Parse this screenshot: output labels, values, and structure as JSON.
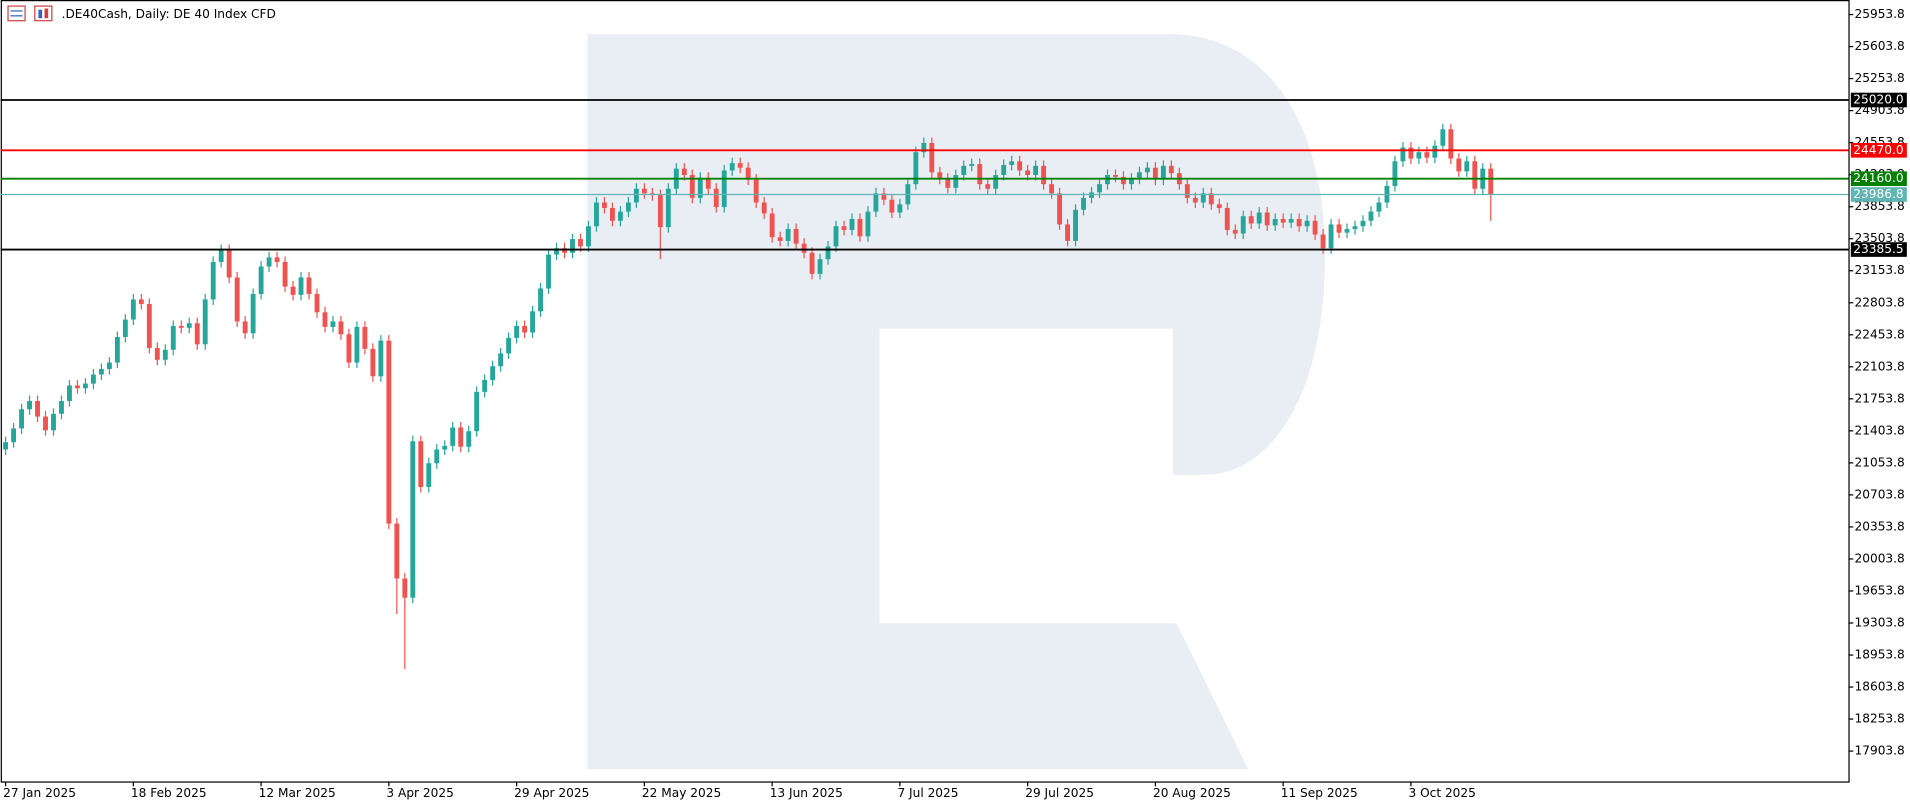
{
  "chart_data": {
    "type": "candlestick",
    "title": ".DE40Cash, Daily:  DE 40 Index CFD",
    "up_color": "#26a69a",
    "down_color": "#ef5350",
    "categories": [
      "27 Jan 2025",
      null,
      null,
      null,
      null,
      null,
      null,
      null,
      null,
      null,
      null,
      null,
      null,
      null,
      null,
      null,
      "18 Feb 2025",
      null,
      null,
      null,
      null,
      null,
      null,
      null,
      null,
      null,
      null,
      null,
      null,
      null,
      null,
      null,
      "12 Mar 2025",
      null,
      null,
      null,
      null,
      null,
      null,
      null,
      null,
      null,
      null,
      null,
      null,
      null,
      null,
      null,
      "3 Apr 2025",
      null,
      null,
      null,
      null,
      null,
      null,
      null,
      null,
      null,
      null,
      null,
      null,
      null,
      null,
      null,
      "29 Apr 2025",
      null,
      null,
      null,
      null,
      null,
      null,
      null,
      null,
      null,
      null,
      null,
      null,
      null,
      null,
      null,
      "22 May 2025",
      null,
      null,
      null,
      null,
      null,
      null,
      null,
      null,
      null,
      null,
      null,
      null,
      null,
      null,
      null,
      "13 Jun 2025",
      null,
      null,
      null,
      null,
      null,
      null,
      null,
      null,
      null,
      null,
      null,
      null,
      null,
      null,
      null,
      "7 Jul 2025",
      null,
      null,
      null,
      null,
      null,
      null,
      null,
      null,
      null,
      null,
      null,
      null,
      null,
      null,
      null,
      "29 Jul 2025",
      null,
      null,
      null,
      null,
      null,
      null,
      null,
      null,
      null,
      null,
      null,
      null,
      null,
      null,
      null,
      "20 Aug 2025",
      null,
      null,
      null,
      null,
      null,
      null,
      null,
      null,
      null,
      null,
      null,
      null,
      null,
      null,
      null,
      "11 Sep 2025",
      null,
      null,
      null,
      null,
      null,
      null,
      null,
      null,
      null,
      null,
      null,
      null,
      null,
      null,
      null,
      "3 Oct 2025",
      null,
      null,
      null,
      null,
      null,
      null,
      null,
      null,
      null,
      null
    ],
    "open": [
      21200,
      21280,
      21430,
      21640,
      21730,
      21560,
      21410,
      21590,
      21730,
      21900,
      21870,
      21920,
      22020,
      22080,
      22150,
      22430,
      22620,
      22840,
      22790,
      22310,
      22180,
      22290,
      22550,
      22530,
      22580,
      22350,
      22840,
      23250,
      23380,
      23080,
      22600,
      22470,
      22900,
      23200,
      23300,
      23250,
      22980,
      22890,
      23080,
      22900,
      22700,
      22540,
      22600,
      22460,
      22150,
      22540,
      22300,
      22000,
      22390,
      20390,
      19790,
      19580,
      21290,
      20790,
      21050,
      21200,
      21240,
      21440,
      21230,
      21400,
      21830,
      21960,
      22110,
      22250,
      22420,
      22550,
      22480,
      22710,
      22960,
      23330,
      23400,
      23350,
      23500,
      23420,
      23640,
      23900,
      23840,
      23700,
      23800,
      23900,
      24050,
      24000,
      23980,
      23630,
      24050,
      24270,
      24200,
      23950,
      24170,
      24050,
      23850,
      24250,
      24330,
      24280,
      24150,
      23900,
      23780,
      23520,
      23480,
      23610,
      23450,
      23350,
      23120,
      23280,
      23420,
      23640,
      23600,
      23720,
      23530,
      23800,
      24000,
      23930,
      23790,
      23880,
      24100,
      24450,
      24550,
      24230,
      24160,
      24060,
      24200,
      24300,
      24320,
      24100,
      24050,
      24200,
      24310,
      24350,
      24250,
      24200,
      24300,
      24100,
      24000,
      23660,
      23480,
      23820,
      23950,
      24010,
      24100,
      24200,
      24180,
      24100,
      24160,
      24230,
      24280,
      24150,
      24300,
      24220,
      24100,
      23950,
      23900,
      24000,
      23880,
      23840,
      23600,
      23560,
      23750,
      23670,
      23790,
      23650,
      23720,
      23680,
      23720,
      23640,
      23700,
      23550,
      23400,
      23660,
      23570,
      23610,
      23640,
      23700,
      23800,
      23900,
      24080,
      24350,
      24500,
      24380,
      24450,
      24390,
      24520,
      24700,
      24380,
      24240,
      24350,
      24050,
      24270
    ],
    "high": [
      21340,
      21490,
      21700,
      21790,
      21790,
      21620,
      21650,
      21790,
      21960,
      21960,
      21980,
      22080,
      22140,
      22210,
      22490,
      22680,
      22900,
      22900,
      22850,
      22370,
      22350,
      22610,
      22610,
      22640,
      22640,
      22900,
      23310,
      23440,
      23440,
      23140,
      22660,
      22960,
      23260,
      23360,
      23360,
      23310,
      23040,
      23140,
      23140,
      22960,
      22760,
      22660,
      22660,
      22520,
      22600,
      22600,
      22360,
      22450,
      22450,
      20450,
      19850,
      21350,
      21350,
      21110,
      21260,
      21300,
      21500,
      21500,
      21460,
      21890,
      22020,
      22170,
      22310,
      22480,
      22610,
      22610,
      22770,
      23020,
      23390,
      23460,
      23460,
      23560,
      23560,
      23700,
      23960,
      23960,
      23900,
      23860,
      23960,
      24110,
      24110,
      24060,
      24040,
      24110,
      24330,
      24330,
      24260,
      24230,
      24230,
      24110,
      24310,
      24390,
      24390,
      24340,
      24210,
      23960,
      23840,
      23580,
      23670,
      23670,
      23510,
      23410,
      23340,
      23480,
      23700,
      23700,
      23780,
      23780,
      23860,
      24060,
      24060,
      23990,
      23940,
      24160,
      24510,
      24610,
      24610,
      24290,
      24220,
      24260,
      24360,
      24380,
      24380,
      24160,
      24260,
      24370,
      24410,
      24410,
      24310,
      24360,
      24360,
      24160,
      24060,
      23720,
      23880,
      24010,
      24070,
      24160,
      24260,
      24260,
      24240,
      24220,
      24290,
      24340,
      24340,
      24360,
      24360,
      24280,
      24160,
      24010,
      24060,
      24060,
      23940,
      23900,
      23660,
      23810,
      23810,
      23850,
      23850,
      23780,
      23780,
      23780,
      23780,
      23760,
      23760,
      23610,
      23720,
      23720,
      23670,
      23700,
      23760,
      23860,
      23960,
      24140,
      24410,
      24560,
      24560,
      24510,
      24510,
      24580,
      24760,
      24760,
      24440,
      24410,
      24410,
      24330,
      24330
    ],
    "low": [
      21140,
      21220,
      21370,
      21580,
      21500,
      21350,
      21350,
      21530,
      21670,
      21810,
      21810,
      21860,
      21960,
      22020,
      22090,
      22370,
      22560,
      22730,
      22250,
      22120,
      22120,
      22230,
      22470,
      22470,
      22290,
      22290,
      22780,
      23190,
      23020,
      22540,
      22410,
      22410,
      22840,
      23140,
      23190,
      22920,
      22830,
      22830,
      22840,
      22640,
      22480,
      22480,
      22400,
      22090,
      22090,
      22240,
      21940,
      21940,
      20330,
      19400,
      18800,
      19520,
      20730,
      20730,
      20990,
      21140,
      21180,
      21170,
      21170,
      21340,
      21770,
      21900,
      22050,
      22190,
      22360,
      22420,
      22420,
      22650,
      22900,
      23270,
      23290,
      23290,
      23360,
      23360,
      23580,
      23780,
      23640,
      23640,
      23740,
      23840,
      23940,
      23920,
      23280,
      23570,
      23990,
      24140,
      23890,
      23890,
      23990,
      23790,
      23790,
      24190,
      24220,
      24090,
      23840,
      23720,
      23460,
      23420,
      23420,
      23390,
      23290,
      23060,
      23060,
      23220,
      23360,
      23540,
      23540,
      23470,
      23470,
      23740,
      23870,
      23730,
      23730,
      23820,
      24040,
      24390,
      24170,
      24100,
      24000,
      24000,
      24140,
      24240,
      24040,
      23990,
      23990,
      24140,
      24250,
      24190,
      24140,
      24140,
      24040,
      23940,
      23600,
      23420,
      23420,
      23760,
      23890,
      23950,
      24040,
      24120,
      24040,
      24040,
      24100,
      24170,
      24090,
      24090,
      24160,
      24040,
      23890,
      23840,
      23840,
      23820,
      23780,
      23540,
      23500,
      23500,
      23610,
      23610,
      23590,
      23590,
      23620,
      23620,
      23580,
      23580,
      23490,
      23340,
      23340,
      23510,
      23510,
      23550,
      23580,
      23640,
      23740,
      23840,
      24020,
      24290,
      24320,
      24320,
      24330,
      24330,
      24460,
      24320,
      24180,
      24180,
      23990,
      23990,
      23700
    ],
    "close": [
      21280,
      21430,
      21640,
      21730,
      21560,
      21410,
      21590,
      21730,
      21900,
      21870,
      21920,
      22020,
      22080,
      22150,
      22430,
      22620,
      22840,
      22790,
      22310,
      22180,
      22290,
      22550,
      22530,
      22580,
      22350,
      22840,
      23250,
      23380,
      23080,
      22600,
      22470,
      22900,
      23200,
      23300,
      23250,
      22980,
      22890,
      23080,
      22900,
      22700,
      22540,
      22600,
      22460,
      22150,
      22540,
      22300,
      22000,
      22390,
      20390,
      19790,
      19580,
      21290,
      20790,
      21050,
      21200,
      21240,
      21440,
      21230,
      21400,
      21830,
      21960,
      22110,
      22250,
      22420,
      22550,
      22480,
      22710,
      22960,
      23330,
      23400,
      23350,
      23500,
      23420,
      23640,
      23900,
      23840,
      23700,
      23800,
      23900,
      24050,
      24000,
      23980,
      23630,
      24050,
      24270,
      24200,
      23950,
      24170,
      24050,
      23850,
      24250,
      24330,
      24280,
      24150,
      23900,
      23780,
      23520,
      23480,
      23610,
      23450,
      23350,
      23120,
      23280,
      23420,
      23640,
      23600,
      23720,
      23530,
      23800,
      24000,
      23930,
      23790,
      23880,
      24100,
      24450,
      24550,
      24230,
      24160,
      24060,
      24200,
      24300,
      24320,
      24100,
      24050,
      24200,
      24310,
      24350,
      24250,
      24200,
      24300,
      24100,
      24000,
      23660,
      23480,
      23820,
      23950,
      24010,
      24100,
      24200,
      24180,
      24100,
      24160,
      24230,
      24280,
      24150,
      24300,
      24220,
      24100,
      23950,
      23900,
      24000,
      23880,
      23840,
      23600,
      23560,
      23750,
      23670,
      23790,
      23650,
      23720,
      23680,
      23720,
      23640,
      23700,
      23550,
      23400,
      23660,
      23570,
      23610,
      23640,
      23700,
      23800,
      23900,
      24080,
      24350,
      24500,
      24380,
      24450,
      24390,
      24520,
      24700,
      24380,
      24240,
      24350,
      24050,
      24270,
      23986.8
    ],
    "ylim": [
      17572,
      26113
    ],
    "yticks": [
      17903.8,
      18253.8,
      18603.8,
      18953.8,
      19303.8,
      19653.8,
      20003.8,
      20353.8,
      20703.8,
      21053.8,
      21403.8,
      21753.8,
      22103.8,
      22453.8,
      22803.8,
      23153.8,
      23503.8,
      23853.8,
      24203.8,
      24553.8,
      24903.8,
      25253.8,
      25603.8,
      25953.8
    ],
    "levels": [
      {
        "value": 25020,
        "label": "25020.0",
        "color": "#000000"
      },
      {
        "value": 24470,
        "label": "24470.0",
        "color": "#ff0000"
      },
      {
        "value": 24160,
        "label": "24160.0",
        "color": "#008000"
      },
      {
        "value": 23986.8,
        "label": "23986.8",
        "color": "#5fb4b4"
      },
      {
        "value": 23385.5,
        "label": "23385.5",
        "color": "#000000"
      }
    ]
  }
}
